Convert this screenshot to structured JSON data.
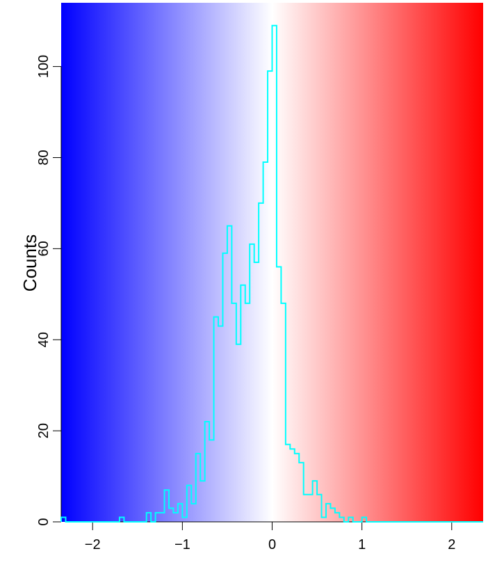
{
  "chart_data": {
    "type": "histogram",
    "title": "",
    "xlabel": "",
    "ylabel": "Counts",
    "xlim": [
      -2.35,
      2.35
    ],
    "ylim": [
      0,
      114
    ],
    "x_ticks": [
      -2,
      -1,
      0,
      1,
      2
    ],
    "x_tick_labels": [
      "−2",
      "−1",
      "0",
      "1",
      "2"
    ],
    "y_ticks": [
      0,
      20,
      40,
      60,
      80,
      100
    ],
    "y_tick_labels": [
      "0",
      "20",
      "40",
      "60",
      "80",
      "100"
    ],
    "background_gradient": {
      "low_color": "#0000ff",
      "mid_color": "#ffffff",
      "high_color": "#ff0000",
      "mid_value": 0
    },
    "step_color": "#00ffff",
    "grid": false,
    "bins": {
      "edges": [
        -2.35,
        -2.3,
        -2.25,
        -2.2,
        -2.15,
        -2.1,
        -2.05,
        -2.0,
        -1.95,
        -1.9,
        -1.85,
        -1.8,
        -1.75,
        -1.7,
        -1.65,
        -1.6,
        -1.55,
        -1.5,
        -1.45,
        -1.4,
        -1.35,
        -1.3,
        -1.25,
        -1.2,
        -1.15,
        -1.1,
        -1.05,
        -1.0,
        -0.95,
        -0.9,
        -0.85,
        -0.8,
        -0.75,
        -0.7,
        -0.65,
        -0.6,
        -0.55,
        -0.5,
        -0.45,
        -0.4,
        -0.35,
        -0.3,
        -0.25,
        -0.2,
        -0.15,
        -0.1,
        -0.05,
        0.0,
        0.05,
        0.1,
        0.15,
        0.2,
        0.25,
        0.3,
        0.35,
        0.4,
        0.45,
        0.5,
        0.55,
        0.6,
        0.65,
        0.7,
        0.75,
        0.8,
        0.85,
        0.9,
        0.95,
        1.0,
        1.05,
        1.1,
        1.15,
        1.2,
        1.25,
        1.3,
        1.35,
        1.4,
        1.45,
        1.5,
        1.55,
        1.6,
        1.65,
        1.7,
        1.75,
        1.8,
        1.85,
        1.9,
        1.95,
        2.0,
        2.05,
        2.1,
        2.15,
        2.2,
        2.25,
        2.3,
        2.35
      ],
      "counts": [
        1,
        0,
        0,
        0,
        0,
        0,
        0,
        0,
        0,
        0,
        0,
        0,
        0,
        1,
        0,
        0,
        0,
        0,
        0,
        2,
        0,
        2,
        2,
        7,
        3,
        2,
        4,
        1,
        8,
        4,
        15,
        9,
        22,
        18,
        45,
        43,
        59,
        65,
        48,
        39,
        52,
        48,
        61,
        57,
        70,
        79,
        99,
        109,
        56,
        48,
        17,
        16,
        15,
        13,
        6,
        6,
        9,
        6,
        1,
        4,
        3,
        2,
        1,
        0,
        1,
        0,
        0,
        1,
        0,
        0,
        0,
        0,
        0,
        0,
        0,
        0,
        0,
        0,
        0,
        0,
        0,
        0,
        0,
        0,
        0,
        0,
        0,
        0,
        0,
        0,
        0,
        0,
        0,
        0
      ]
    }
  }
}
